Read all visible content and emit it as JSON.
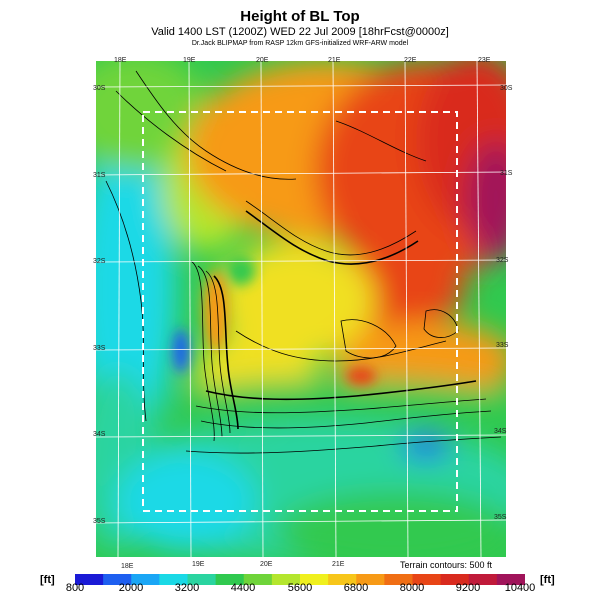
{
  "header": {
    "title": "Height of BL Top",
    "subtitle": "Valid 1400 LST (1200Z) WED 22 Jul 2009 [18hrFcst@0000z]",
    "credit": "Dr.Jack BLIPMAP from RASP 12km GFS-initialized WRF-ARW model"
  },
  "axes": {
    "top_lon": [
      "18E",
      "19E",
      "20E",
      "21E",
      "22E",
      "23E"
    ],
    "bottom_lon": [
      "18E",
      "19E",
      "20E",
      "21E"
    ],
    "left_lat": [
      "30S",
      "31S",
      "32S",
      "33S",
      "34S",
      "35S"
    ],
    "right_lat": [
      "30S",
      "31S",
      "32S",
      "33S",
      "34S",
      "35S"
    ]
  },
  "contour_note": "Terrain contours: 500 ft",
  "colorbar": {
    "unit_left": "[ft]",
    "unit_right": "[ft]",
    "ticks": [
      "800",
      "2000",
      "3200",
      "4400",
      "5600",
      "6800",
      "8000",
      "9200",
      "10400"
    ],
    "colors": [
      "#1a1ad6",
      "#1e5ff0",
      "#1aa6f5",
      "#1ad9e6",
      "#2ad4a0",
      "#30c94f",
      "#6fd43a",
      "#b4e62e",
      "#f0f01e",
      "#f7c61a",
      "#f79a16",
      "#f06e14",
      "#e84516",
      "#d92a1e",
      "#c01a3a",
      "#a0145a"
    ]
  },
  "map_colors": {
    "deep_red": "#c01a3a",
    "red": "#e84516",
    "orange": "#f79a16",
    "yellow": "#f0e020",
    "lime": "#b4e62e",
    "green": "#30c94f",
    "teal": "#2ad4a0",
    "cyan": "#1ad9e6",
    "blue": "#1e5ff0"
  }
}
